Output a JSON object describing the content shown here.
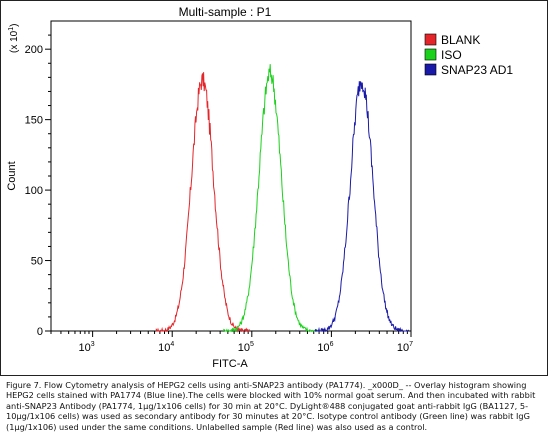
{
  "chart_data": {
    "type": "line",
    "title": "Multi-sample : P1",
    "xlabel": "FITC-A",
    "ylabel": "Count",
    "y_multiplier_label": "(x 10",
    "y_multiplier_exp": "1",
    "y_multiplier_close": ")",
    "x_scale": "log",
    "xlim": [
      300,
      10000000
    ],
    "ylim": [
      0,
      220
    ],
    "x_ticks": [
      {
        "base": "10",
        "exp": "3",
        "value": 1000
      },
      {
        "base": "10",
        "exp": "4",
        "value": 10000
      },
      {
        "base": "10",
        "exp": "5",
        "value": 100000
      },
      {
        "base": "10",
        "exp": "6",
        "value": 1000000
      },
      {
        "base": "10",
        "exp": "7",
        "value": 10000000
      }
    ],
    "y_ticks": [
      "0",
      "50",
      "100",
      "150",
      "200"
    ],
    "legend_position": "right",
    "series": [
      {
        "name": "BLANK",
        "color": "#e4262a",
        "peak_x": 24000,
        "peak_y": 178,
        "width_decades": 0.14
      },
      {
        "name": "ISO",
        "color": "#1bd11b",
        "peak_x": 170000,
        "peak_y": 183,
        "width_decades": 0.14
      },
      {
        "name": "SNAP23 AD1",
        "color": "#1a1aa8",
        "peak_x": 2400000,
        "peak_y": 178,
        "width_decades": 0.14
      }
    ]
  },
  "caption": "Figure 7. Flow Cytometry analysis of HEPG2 cells using anti-SNAP23 antibody (PA1774). _x000D_ -- Overlay histogram showing HEPG2 cells stained with PA1774 (Blue line).The cells were blocked with 10% normal goat serum. And then incubated with rabbit anti-SNAP23 Antibody (PA1774, 1μg/1x106 cells) for 30 min at 20°C. DyLight®488 conjugated goat anti-rabbit IgG (BA1127, 5-10μg/1x106 cells) was used as secondary antibody for 30 minutes at 20°C. Isotype control antibody (Green line) was rabbit IgG (1μg/1x106) used under the same conditions. Unlabelled sample (Red line) was also used as a control."
}
